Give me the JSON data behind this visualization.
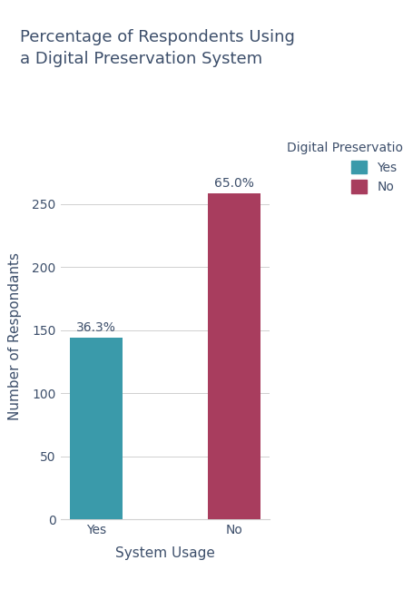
{
  "title": "Percentage of Respondents Using\na Digital Preservation System",
  "xlabel": "System Usage",
  "ylabel": "Number of Respondants",
  "categories": [
    "Yes",
    "No"
  ],
  "values": [
    144,
    258
  ],
  "percentages": [
    "36.3%",
    "65.0%"
  ],
  "bar_colors": [
    "#3a9aaa",
    "#a83d5e"
  ],
  "legend_title": "Digital Preservation System",
  "legend_labels": [
    "Yes",
    "No"
  ],
  "legend_colors": [
    "#3a9aaa",
    "#a83d5e"
  ],
  "ylim": [
    0,
    290
  ],
  "yticks": [
    0,
    50,
    100,
    150,
    200,
    250
  ],
  "title_color": "#3d4f6b",
  "label_color": "#3d4f6b",
  "tick_color": "#3d4f6b",
  "background_color": "#ffffff",
  "grid_color": "#d0d0d0",
  "title_fontsize": 13,
  "axis_label_fontsize": 11,
  "tick_fontsize": 10,
  "annotation_fontsize": 10,
  "legend_fontsize": 10,
  "bar_width": 0.38
}
